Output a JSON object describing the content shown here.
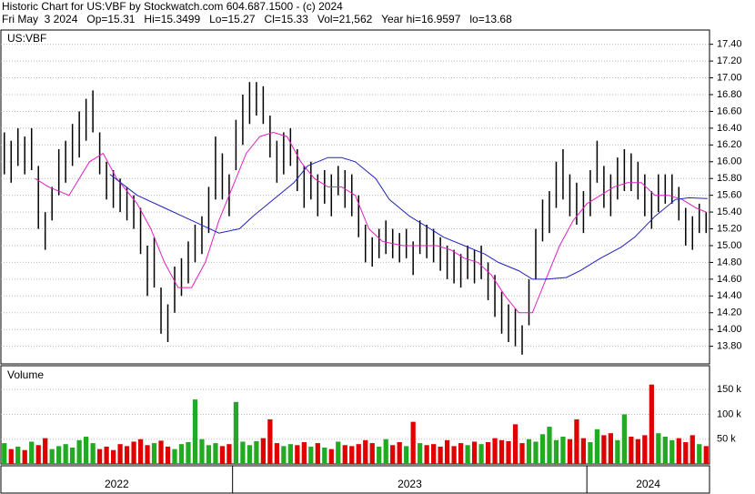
{
  "chart_data": {
    "type": "stock",
    "title": "Historic Chart for US:VBF by Stockwatch.com 604.687.1500 - (c) 2024",
    "subtitle": "Fri May  3 2024   Op=15.31   Hi=15.3499   Lo=15.27   Cl=15.33   Vol=21,562   Year hi=16.9597   lo=13.68",
    "symbol": "US:VBF",
    "color": "#000000",
    "grid": true,
    "xlim": [
      0,
      104
    ],
    "ylim": [
      13.59,
      17.57
    ],
    "yticks": [
      {
        "value": 13.8,
        "label": "13.80"
      },
      {
        "value": 14.0,
        "label": "14.00"
      },
      {
        "value": 14.2,
        "label": "14.20"
      },
      {
        "value": 14.4,
        "label": "14.40"
      },
      {
        "value": 14.6,
        "label": "14.60"
      },
      {
        "value": 14.8,
        "label": "14.80"
      },
      {
        "value": 15.0,
        "label": "15.00"
      },
      {
        "value": 15.2,
        "label": "15.20"
      },
      {
        "value": 15.4,
        "label": "15.40"
      },
      {
        "value": 15.6,
        "label": "15.60"
      },
      {
        "value": 15.8,
        "label": "15.80"
      },
      {
        "value": 16.0,
        "label": "16.00"
      },
      {
        "value": 16.2,
        "label": "16.20"
      },
      {
        "value": 16.4,
        "label": "16.40"
      },
      {
        "value": 16.6,
        "label": "16.60"
      },
      {
        "value": 16.8,
        "label": "16.80"
      },
      {
        "value": 17.0,
        "label": "17.00"
      },
      {
        "value": 17.2,
        "label": "17.20"
      },
      {
        "value": 17.4,
        "label": "17.40"
      }
    ],
    "high": [
      16.35,
      16.25,
      16.4,
      16.3,
      16.4,
      15.95,
      15.4,
      15.7,
      16.15,
      16.25,
      16.45,
      16.6,
      16.75,
      16.85,
      16.35,
      16.0,
      15.9,
      15.8,
      15.7,
      15.6,
      15.45,
      15.0,
      15.1,
      14.5,
      14.3,
      14.75,
      14.85,
      15.05,
      15.25,
      15.35,
      15.7,
      16.3,
      16.1,
      15.85,
      16.5,
      16.8,
      16.95,
      16.95,
      16.9,
      16.55,
      16.25,
      16.35,
      16.4,
      16.15,
      15.95,
      16.0,
      15.85,
      15.9,
      15.85,
      15.95,
      15.9,
      15.85,
      15.6,
      15.25,
      15.1,
      15.2,
      15.3,
      15.2,
      15.15,
      15.2,
      15.05,
      15.3,
      15.25,
      15.2,
      15.1,
      15.0,
      14.95,
      14.9,
      15.0,
      14.95,
      15.0,
      14.8,
      14.65,
      14.45,
      14.3,
      14.25,
      14.05,
      14.6,
      15.2,
      15.55,
      15.65,
      16.0,
      16.15,
      15.85,
      15.75,
      15.65,
      15.9,
      16.25,
      15.95,
      15.85,
      16.05,
      16.15,
      16.1,
      16.0,
      15.85,
      15.65,
      15.85,
      15.85,
      15.85,
      15.7,
      15.45,
      15.35,
      15.5,
      15.4
    ],
    "low": [
      15.85,
      15.75,
      15.95,
      15.85,
      15.9,
      15.2,
      14.95,
      15.3,
      15.6,
      15.75,
      15.95,
      16.05,
      16.25,
      16.35,
      15.85,
      15.55,
      15.45,
      15.4,
      15.3,
      15.2,
      14.9,
      14.4,
      14.5,
      13.95,
      13.85,
      14.2,
      14.4,
      14.55,
      14.8,
      14.9,
      15.15,
      15.55,
      15.55,
      15.35,
      15.9,
      16.2,
      16.45,
      16.55,
      16.45,
      16.05,
      15.75,
      15.85,
      15.95,
      15.65,
      15.45,
      15.55,
      15.35,
      15.5,
      15.35,
      15.6,
      15.45,
      15.35,
      15.1,
      14.8,
      14.75,
      14.85,
      14.9,
      14.85,
      14.8,
      14.85,
      14.65,
      14.9,
      14.85,
      14.8,
      14.7,
      14.6,
      14.55,
      14.5,
      14.6,
      14.55,
      14.6,
      14.35,
      14.15,
      13.95,
      13.85,
      13.8,
      13.7,
      14.05,
      14.6,
      15.05,
      15.15,
      15.45,
      15.55,
      15.35,
      15.25,
      15.15,
      15.35,
      15.75,
      15.45,
      15.35,
      15.55,
      15.65,
      15.65,
      15.55,
      15.35,
      15.2,
      15.4,
      15.5,
      15.5,
      15.3,
      15.0,
      14.95,
      15.15,
      15.15
    ],
    "moving_averages": [
      {
        "color": "#e020c0",
        "x": [
          5,
          7,
          10,
          13,
          15,
          17,
          20,
          22,
          24,
          26,
          28,
          30,
          32,
          34,
          36,
          38,
          40,
          42,
          44,
          46,
          48,
          50,
          52,
          54,
          56,
          59,
          61,
          64,
          66,
          68,
          70,
          72,
          74,
          76,
          78,
          80,
          82,
          84,
          86,
          88,
          90,
          92,
          94,
          96,
          98,
          100,
          102,
          103.5
        ],
        "values": [
          15.8,
          15.7,
          15.6,
          16.0,
          16.1,
          15.8,
          15.5,
          15.2,
          14.8,
          14.5,
          14.5,
          14.8,
          15.3,
          15.7,
          16.1,
          16.3,
          16.35,
          16.3,
          16.0,
          15.8,
          15.7,
          15.7,
          15.6,
          15.2,
          15.05,
          15.0,
          15.0,
          15.0,
          14.95,
          14.85,
          14.8,
          14.65,
          14.4,
          14.2,
          14.2,
          14.6,
          15.0,
          15.3,
          15.5,
          15.6,
          15.7,
          15.75,
          15.75,
          15.6,
          15.6,
          15.55,
          15.45,
          15.4
        ]
      },
      {
        "color": "#2020c0",
        "x": [
          16,
          20,
          24,
          28,
          32,
          35,
          37,
          40,
          43,
          45,
          48,
          50,
          52,
          55,
          57,
          60,
          63,
          65,
          68,
          71,
          73,
          76,
          78,
          80,
          83,
          85,
          88,
          91,
          93,
          96,
          99,
          101,
          103.7
        ],
        "values": [
          15.85,
          15.6,
          15.45,
          15.3,
          15.15,
          15.2,
          15.35,
          15.55,
          15.75,
          15.95,
          16.05,
          16.05,
          16.0,
          15.8,
          15.55,
          15.35,
          15.2,
          15.1,
          15.0,
          14.9,
          14.8,
          14.7,
          14.6,
          14.6,
          14.62,
          14.7,
          14.85,
          14.98,
          15.1,
          15.35,
          15.55,
          15.57,
          15.56
        ]
      }
    ],
    "volume": {
      "label": "Volume",
      "up_color": "#22aa22",
      "down_color": "#e00000",
      "ylim": [
        0,
        198000
      ],
      "yticks": [
        {
          "value": 50000,
          "label": "50 k"
        },
        {
          "value": 100000,
          "label": "100 k"
        },
        {
          "value": 150000,
          "label": "150 k"
        }
      ],
      "values": [
        42000,
        30000,
        35000,
        28000,
        45000,
        38000,
        52000,
        30000,
        36000,
        40000,
        33000,
        48000,
        55000,
        42000,
        30000,
        35000,
        28000,
        40000,
        36000,
        45000,
        50000,
        38000,
        42000,
        47000,
        35000,
        30000,
        40000,
        44000,
        130000,
        50000,
        38000,
        42000,
        36000,
        40000,
        125000,
        45000,
        38000,
        46000,
        52000,
        90000,
        42000,
        36000,
        40000,
        38000,
        44000,
        35000,
        42000,
        33000,
        30000,
        45000,
        38000,
        36000,
        40000,
        48000,
        42000,
        35000,
        50000,
        38000,
        44000,
        36000,
        85000,
        42000,
        38000,
        40000,
        35000,
        48000,
        36000,
        42000,
        38000,
        45000,
        40000,
        44000,
        52000,
        48000,
        46000,
        80000,
        42000,
        50000,
        45000,
        60000,
        75000,
        48000,
        55000,
        50000,
        90000,
        52000,
        44000,
        70000,
        58000,
        62000,
        48000,
        100000,
        55000,
        50000,
        58000,
        160000,
        62000,
        55000,
        48000,
        52000,
        44000,
        58000,
        40000,
        36000
      ]
    },
    "periods": [
      {
        "label": "2022",
        "weeks": 34
      },
      {
        "label": "2023",
        "weeks": 52
      },
      {
        "label": "2024",
        "weeks": 18
      }
    ]
  }
}
